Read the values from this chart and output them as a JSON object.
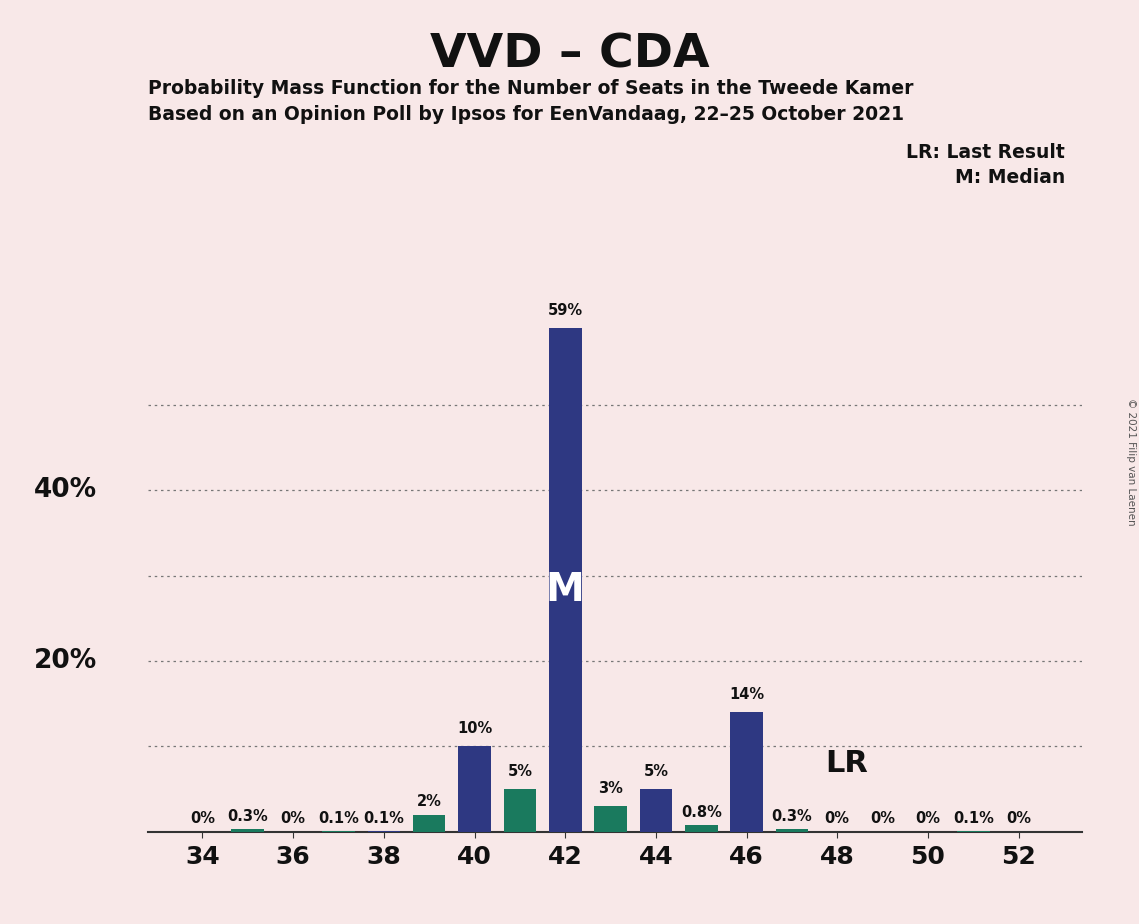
{
  "title": "VVD – CDA",
  "subtitle1": "Probability Mass Function for the Number of Seats in the Tweede Kamer",
  "subtitle2": "Based on an Opinion Poll by Ipsos for EenVandaag, 22–25 October 2021",
  "copyright": "© 2021 Filip van Laenen",
  "legend_lr": "LR: Last Result",
  "legend_m": "M: Median",
  "seats": [
    34,
    35,
    36,
    37,
    38,
    39,
    40,
    41,
    42,
    43,
    44,
    45,
    46,
    47,
    48,
    49,
    50,
    51,
    52
  ],
  "values": [
    0.0,
    0.3,
    0.0,
    0.1,
    0.1,
    2.0,
    10.0,
    5.0,
    59.0,
    3.0,
    5.0,
    0.8,
    14.0,
    0.3,
    0.0,
    0.0,
    0.0,
    0.1,
    0.0
  ],
  "bar_colors": [
    "#2e3882",
    "#1a7a5e",
    "#2e3882",
    "#1a7a5e",
    "#2e3882",
    "#1a7a5e",
    "#2e3882",
    "#1a7a5e",
    "#2e3882",
    "#1a7a5e",
    "#2e3882",
    "#1a7a5e",
    "#2e3882",
    "#1a7a5e",
    "#2e3882",
    "#1a7a5e",
    "#2e3882",
    "#1a7a5e",
    "#2e3882"
  ],
  "bar_labels": [
    "0%",
    "0.3%",
    "0%",
    "0.1%",
    "0.1%",
    "2%",
    "10%",
    "5%",
    "59%",
    "3%",
    "5%",
    "0.8%",
    "14%",
    "0.3%",
    "0%",
    "0%",
    "0%",
    "0.1%",
    "0%"
  ],
  "median_seat": 42,
  "lr_seat": 47,
  "ylim": [
    0,
    65
  ],
  "background_color": "#f8e8e8",
  "bar_width": 0.72,
  "grid_color": "#777777",
  "grid_levels": [
    10,
    20,
    30,
    40,
    50
  ]
}
